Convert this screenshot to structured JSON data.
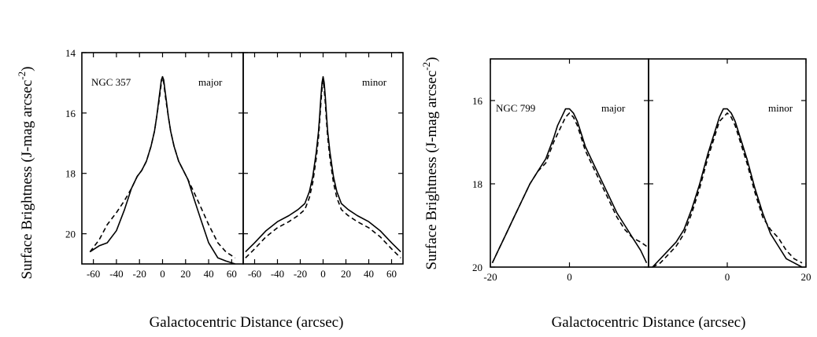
{
  "chart_data": [
    {
      "type": "line",
      "galaxy": "NGC 357",
      "ylabel_main": "Surface Brightness (J-mag arcsec",
      "ylabel_exp": "-2",
      "ylabel_close": ")",
      "xlabel": "Galactocentric Distance (arcsec)",
      "ylim": [
        21,
        14
      ],
      "yticks": [
        "14",
        "16",
        "18",
        "20"
      ],
      "ytick_values": [
        14,
        16,
        18,
        20
      ],
      "panels": [
        {
          "label_left": "NGC 357",
          "label_right": "major",
          "xlim": [
            -70,
            70
          ],
          "xticks": [
            "-60",
            "-40",
            "-20",
            "0",
            "20",
            "40",
            "60"
          ],
          "xtick_values": [
            -60,
            -40,
            -20,
            0,
            20,
            40,
            60
          ],
          "series": [
            {
              "style": "solid",
              "x": [
                -63,
                -55,
                -48,
                -40,
                -33,
                -27,
                -22,
                -18,
                -14,
                -10,
                -7,
                -5,
                -3,
                -2,
                -1,
                0,
                1,
                2,
                3,
                5,
                7,
                10,
                14,
                18,
                22,
                27,
                33,
                40,
                48,
                55,
                63
              ],
              "y": [
                20.6,
                20.4,
                20.3,
                19.9,
                19.2,
                18.5,
                18.1,
                17.9,
                17.6,
                17.1,
                16.6,
                16.1,
                15.5,
                15.2,
                14.9,
                14.8,
                14.9,
                15.2,
                15.5,
                16.1,
                16.6,
                17.1,
                17.6,
                17.9,
                18.2,
                18.8,
                19.5,
                20.3,
                20.8,
                20.9,
                21
              ]
            },
            {
              "style": "dashed",
              "x": [
                -63,
                -55,
                -48,
                -40,
                -33,
                -27,
                -22,
                -18,
                -14,
                -10,
                -7,
                -5,
                -3,
                -2,
                -1,
                0,
                1,
                2,
                3,
                5,
                7,
                10,
                14,
                18,
                22,
                27,
                33,
                40,
                48,
                55,
                63
              ],
              "y": [
                20.6,
                20.2,
                19.7,
                19.3,
                18.9,
                18.5,
                18.1,
                17.9,
                17.6,
                17.1,
                16.6,
                16.1,
                15.6,
                15.3,
                15.0,
                14.8,
                15.0,
                15.3,
                15.6,
                16.1,
                16.6,
                17.1,
                17.6,
                17.9,
                18.2,
                18.6,
                19.1,
                19.7,
                20.3,
                20.6,
                20.8
              ]
            }
          ]
        },
        {
          "label_left": "",
          "label_right": "minor",
          "xlim": [
            -70,
            70
          ],
          "xticks": [
            "-60",
            "-40",
            "-20",
            "0",
            "20",
            "40",
            "60"
          ],
          "xtick_values": [
            -60,
            -40,
            -20,
            0,
            20,
            40,
            60
          ],
          "series": [
            {
              "style": "solid",
              "x": [
                -68,
                -60,
                -50,
                -40,
                -30,
                -22,
                -16,
                -12,
                -9,
                -6,
                -4,
                -3,
                -2,
                -1,
                0,
                1,
                2,
                3,
                4,
                6,
                9,
                12,
                16,
                22,
                30,
                40,
                50,
                60,
                68
              ],
              "y": [
                20.6,
                20.3,
                19.9,
                19.6,
                19.4,
                19.2,
                19.0,
                18.6,
                18.1,
                17.3,
                16.6,
                16.1,
                15.5,
                15.0,
                14.8,
                15.0,
                15.5,
                16.1,
                16.6,
                17.3,
                18.1,
                18.6,
                19.0,
                19.2,
                19.4,
                19.6,
                19.9,
                20.3,
                20.6
              ]
            },
            {
              "style": "dashed",
              "x": [
                -68,
                -60,
                -50,
                -40,
                -30,
                -22,
                -16,
                -12,
                -9,
                -6,
                -4,
                -3,
                -2,
                -1,
                0,
                1,
                2,
                3,
                4,
                6,
                9,
                12,
                16,
                22,
                30,
                40,
                50,
                60,
                68
              ],
              "y": [
                20.8,
                20.5,
                20.1,
                19.8,
                19.6,
                19.4,
                19.2,
                18.8,
                18.3,
                17.5,
                16.8,
                16.3,
                15.7,
                15.2,
                14.9,
                15.2,
                15.7,
                16.3,
                16.8,
                17.5,
                18.3,
                18.8,
                19.2,
                19.4,
                19.6,
                19.8,
                20.1,
                20.5,
                20.8
              ]
            }
          ]
        }
      ]
    },
    {
      "type": "line",
      "galaxy": "NGC 799",
      "ylabel_main": "Surface Brightness (J-mag arcsec",
      "ylabel_exp": "-2",
      "ylabel_close": ")",
      "xlabel": "Galactocentric Distance (arcsec)",
      "ylim": [
        20,
        15
      ],
      "yticks": [
        "16",
        "18",
        "20"
      ],
      "ytick_values": [
        16,
        18,
        20
      ],
      "panels": [
        {
          "label_left": "NGC 799",
          "label_right": "major",
          "xlim": [
            -20,
            20
          ],
          "xticks": [
            "-20",
            "0"
          ],
          "xtick_values": [
            -20,
            0
          ],
          "series": [
            {
              "style": "solid",
              "x": [
                -19.5,
                -18,
                -16,
                -14,
                -12,
                -10,
                -8,
                -6,
                -4,
                -3,
                -2,
                -1,
                0,
                1,
                2,
                3,
                4,
                6,
                8,
                10,
                12,
                14,
                16,
                18,
                19.5
              ],
              "y": [
                19.9,
                19.6,
                19.2,
                18.8,
                18.4,
                18.0,
                17.7,
                17.4,
                16.9,
                16.6,
                16.4,
                16.2,
                16.2,
                16.3,
                16.5,
                16.8,
                17.1,
                17.5,
                17.9,
                18.3,
                18.7,
                19.0,
                19.3,
                19.6,
                19.9
              ]
            },
            {
              "style": "dashed",
              "x": [
                -19.5,
                -18,
                -16,
                -14,
                -12,
                -10,
                -8,
                -6,
                -4,
                -3,
                -2,
                -1,
                0,
                1,
                2,
                3,
                4,
                6,
                8,
                10,
                12,
                14,
                16,
                18,
                19.5
              ],
              "y": [
                19.9,
                19.6,
                19.2,
                18.8,
                18.4,
                18.0,
                17.7,
                17.5,
                17.0,
                16.8,
                16.6,
                16.4,
                16.3,
                16.4,
                16.6,
                16.9,
                17.2,
                17.6,
                18.0,
                18.4,
                18.8,
                19.1,
                19.3,
                19.4,
                19.5
              ]
            }
          ]
        },
        {
          "label_left": "",
          "label_right": "minor",
          "xlim": [
            -20,
            20
          ],
          "xticks": [
            "0",
            "20"
          ],
          "xtick_values": [
            0,
            20
          ],
          "series": [
            {
              "style": "solid",
              "x": [
                -19,
                -17,
                -15,
                -13,
                -11,
                -9,
                -7,
                -5,
                -3,
                -2,
                -1,
                0,
                1,
                2,
                3,
                5,
                7,
                9,
                11,
                13,
                15,
                17,
                19
              ],
              "y": [
                20.0,
                19.8,
                19.6,
                19.4,
                19.1,
                18.6,
                18.0,
                17.3,
                16.7,
                16.4,
                16.2,
                16.2,
                16.3,
                16.5,
                16.8,
                17.4,
                18.1,
                18.7,
                19.2,
                19.5,
                19.8,
                19.9,
                20.0
              ]
            },
            {
              "style": "dashed",
              "x": [
                -19,
                -17,
                -15,
                -13,
                -11,
                -9,
                -7,
                -5,
                -3,
                -2,
                -1,
                0,
                1,
                2,
                3,
                5,
                7,
                9,
                11,
                13,
                15,
                17,
                19
              ],
              "y": [
                20.0,
                19.9,
                19.7,
                19.5,
                19.2,
                18.7,
                18.1,
                17.4,
                16.8,
                16.5,
                16.4,
                16.3,
                16.4,
                16.6,
                16.9,
                17.5,
                18.2,
                18.8,
                19.1,
                19.3,
                19.6,
                19.8,
                19.9
              ]
            }
          ]
        }
      ]
    }
  ]
}
